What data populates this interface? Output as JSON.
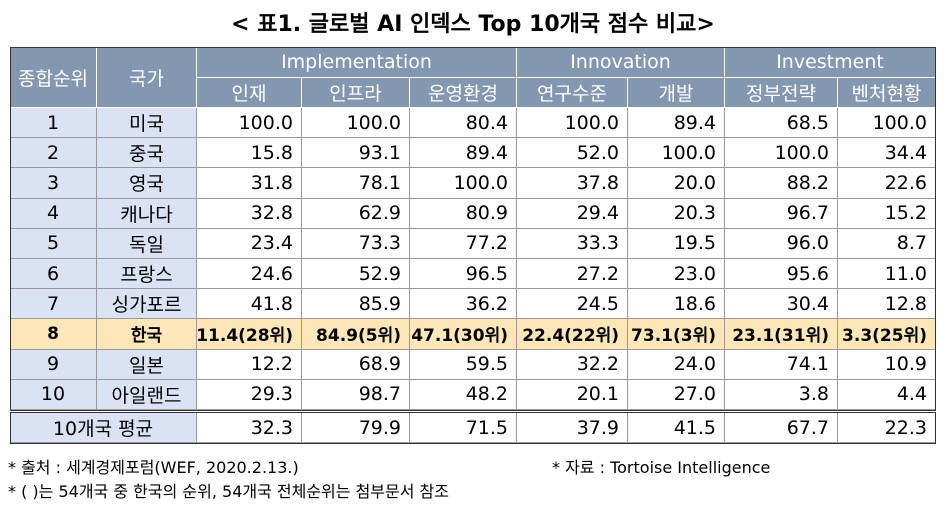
{
  "title": "< 표1. 글로벌 AI 인덱스 Top 10개국 점수 비교>",
  "table": {
    "rank_header": "종합순위",
    "country_header": "국가",
    "groups": [
      "Implementation",
      "Innovation",
      "Investment"
    ],
    "columns": [
      "인재",
      "인프라",
      "운영환경",
      "연구수준",
      "개발",
      "정부전략",
      "벤처현황"
    ],
    "rows": [
      [
        "1",
        "미국",
        "100.0",
        "100.0",
        "80.4",
        "100.0",
        "89.4",
        "68.5",
        "100.0"
      ],
      [
        "2",
        "중국",
        "15.8",
        "93.1",
        "89.4",
        "52.0",
        "100.0",
        "100.0",
        "34.4"
      ],
      [
        "3",
        "영국",
        "31.8",
        "78.1",
        "100.0",
        "37.8",
        "20.0",
        "88.2",
        "22.6"
      ],
      [
        "4",
        "캐나다",
        "32.8",
        "62.9",
        "80.9",
        "29.4",
        "20.3",
        "96.7",
        "15.2"
      ],
      [
        "5",
        "독일",
        "23.4",
        "73.3",
        "77.2",
        "33.3",
        "19.5",
        "96.0",
        "8.7"
      ],
      [
        "6",
        "프랑스",
        "24.6",
        "52.9",
        "96.5",
        "27.2",
        "23.0",
        "95.6",
        "11.0"
      ],
      [
        "7",
        "싱가포르",
        "41.8",
        "85.9",
        "36.2",
        "24.5",
        "18.6",
        "30.4",
        "12.8"
      ],
      [
        "8",
        "한국",
        "11.4(28위)",
        "84.9(5위)",
        "47.1(30위)",
        "22.4(22위)",
        "73.1(3위)",
        "23.1(31위)",
        "3.3(25위)"
      ],
      [
        "9",
        "일본",
        "12.2",
        "68.9",
        "59.5",
        "32.2",
        "24.0",
        "74.1",
        "10.9"
      ],
      [
        "10",
        "아일랜드",
        "29.3",
        "98.7",
        "48.2",
        "20.1",
        "27.0",
        "3.8",
        "4.4"
      ]
    ],
    "average": [
      "10개국 평균",
      "32.3",
      "79.9",
      "71.5",
      "37.9",
      "41.5",
      "67.7",
      "22.3"
    ]
  },
  "notes": [
    "* 출처 : 세계경제포럼(WEF, 2020.2.13.)",
    "* 자료 : Tortoise Intelligence",
    "* ( )는 54개국 중 한국의 순위, 54개국 전체순위는 첨부문서 참조"
  ]
}
